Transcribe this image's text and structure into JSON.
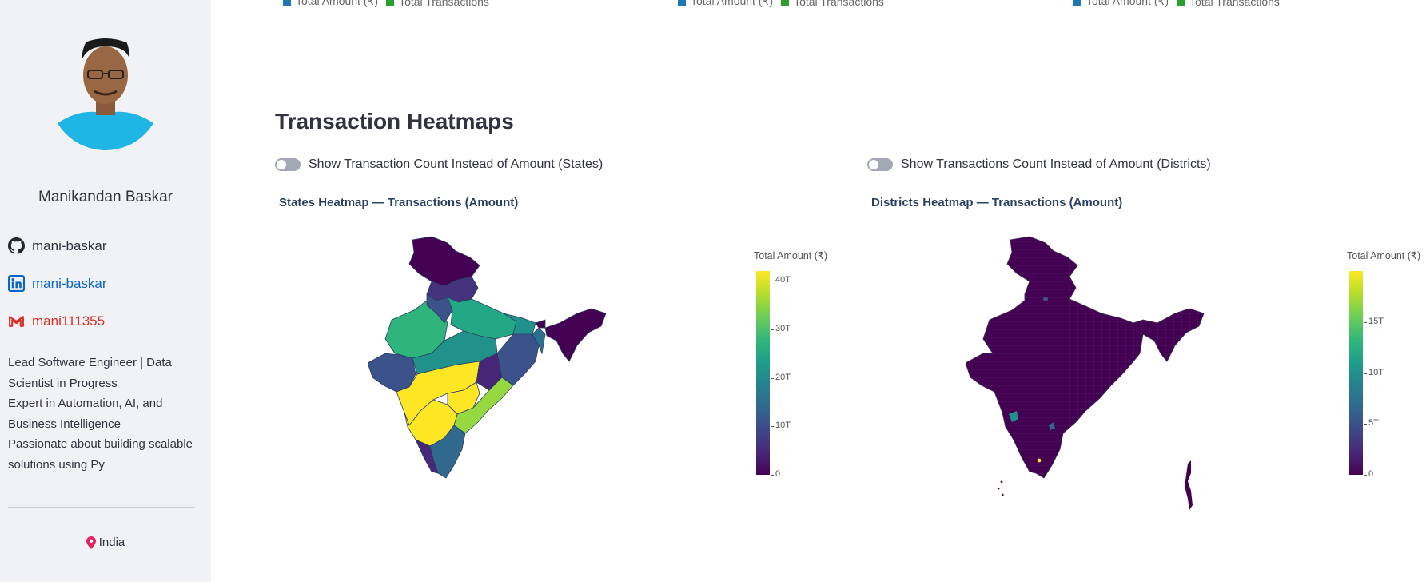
{
  "sidebar": {
    "name": "Manikandan Baskar",
    "github": "mani-baskar",
    "linkedin": "mani-baskar",
    "email": "mani111355",
    "bio": [
      "Lead Software Engineer | Data",
      "Scientist in Progress",
      "Expert in Automation, AI, and",
      "Business Intelligence",
      "Passionate about building scalable",
      "solutions using Py"
    ],
    "location": "India",
    "icons": {
      "github": "github-icon",
      "linkedin": "linkedin-icon",
      "email": "gmail-icon",
      "location": "pin-icon"
    }
  },
  "top_legends": [
    {
      "amount": "Total Amount (₹)",
      "transactions": "Total Transactions"
    },
    {
      "amount": "Total Amount (₹)",
      "transactions": "Total Transactions"
    },
    {
      "amount": "Total Amount (₹)",
      "transactions": "Total Transactions"
    }
  ],
  "main": {
    "section_title": "Transaction Heatmaps",
    "toggle_states_label": "Show Transaction Count Instead of Amount (States)",
    "toggle_districts_label": "Show Transactions Count Instead of Amount (Districts)",
    "toggle_states_on": false,
    "toggle_districts_on": false
  },
  "colors": {
    "sidebar_bg": "#f0f2f6",
    "linkedin": "#0a66c2",
    "email": "#d93025",
    "legend_amount": "#1f77b4",
    "legend_transactions": "#2ca02c"
  },
  "chart_data": [
    {
      "type": "heatmap",
      "title": "States Heatmap — Transactions (Amount)",
      "colorbar_title": "Total Amount (₹)",
      "colorscale": "viridis",
      "range": [
        0,
        42
      ],
      "ticks": [
        "0",
        "10T",
        "20T",
        "30T",
        "40T"
      ],
      "tick_values": [
        0,
        10,
        20,
        30,
        40
      ]
    },
    {
      "type": "heatmap",
      "title": "Districts Heatmap — Transactions (Amount)",
      "colorbar_title": "Total Amount (₹)",
      "colorscale": "viridis",
      "range": [
        0,
        20
      ],
      "ticks": [
        "0",
        "5T",
        "10T",
        "15T"
      ],
      "tick_values": [
        0,
        5,
        10,
        15
      ]
    }
  ]
}
